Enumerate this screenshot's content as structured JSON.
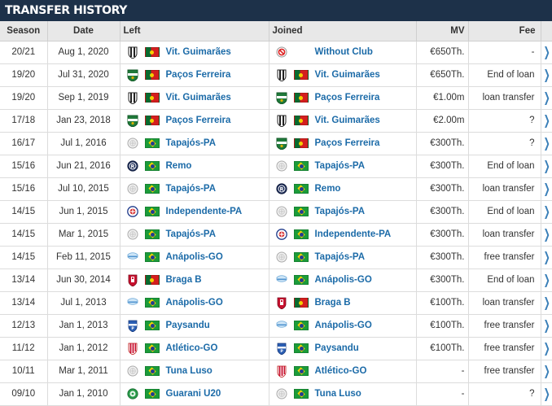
{
  "header": {
    "title": "TRANSFER HISTORY"
  },
  "columns": {
    "season": "Season",
    "date": "Date",
    "left": "Left",
    "joined": "Joined",
    "mv": "MV",
    "fee": "Fee"
  },
  "rows": [
    {
      "season": "20/21",
      "date": "Aug 1, 2020",
      "left": {
        "crest": "vitoria-guimaraes-crest-icon",
        "flag": "portugal",
        "name": "Vit. Guimarães"
      },
      "joined": {
        "crest": "without-club-icon",
        "flag": "none",
        "name": "Without Club"
      },
      "mv": "€650Th.",
      "fee": "-"
    },
    {
      "season": "19/20",
      "date": "Jul 31, 2020",
      "left": {
        "crest": "pacos-ferreira-crest-icon",
        "flag": "portugal",
        "name": "Paços Ferreira"
      },
      "joined": {
        "crest": "vitoria-guimaraes-crest-icon",
        "flag": "portugal",
        "name": "Vit. Guimarães"
      },
      "mv": "€650Th.",
      "fee": "End of loan"
    },
    {
      "season": "19/20",
      "date": "Sep 1, 2019",
      "left": {
        "crest": "vitoria-guimaraes-crest-icon",
        "flag": "portugal",
        "name": "Vit. Guimarães"
      },
      "joined": {
        "crest": "pacos-ferreira-crest-icon",
        "flag": "portugal",
        "name": "Paços Ferreira"
      },
      "mv": "€1.00m",
      "fee": "loan transfer"
    },
    {
      "season": "17/18",
      "date": "Jan 23, 2018",
      "left": {
        "crest": "pacos-ferreira-crest-icon",
        "flag": "portugal",
        "name": "Paços Ferreira"
      },
      "joined": {
        "crest": "vitoria-guimaraes-crest-icon",
        "flag": "portugal",
        "name": "Vit. Guimarães"
      },
      "mv": "€2.00m",
      "fee": "?"
    },
    {
      "season": "16/17",
      "date": "Jul 1, 2016",
      "left": {
        "crest": "tapajos-crest-icon",
        "flag": "brazil",
        "name": "Tapajós-PA"
      },
      "joined": {
        "crest": "pacos-ferreira-crest-icon",
        "flag": "portugal",
        "name": "Paços Ferreira"
      },
      "mv": "€300Th.",
      "fee": "?"
    },
    {
      "season": "15/16",
      "date": "Jun 21, 2016",
      "left": {
        "crest": "remo-crest-icon",
        "flag": "brazil",
        "name": "Remo"
      },
      "joined": {
        "crest": "tapajos-crest-icon",
        "flag": "brazil",
        "name": "Tapajós-PA"
      },
      "mv": "€300Th.",
      "fee": "End of loan"
    },
    {
      "season": "15/16",
      "date": "Jul 10, 2015",
      "left": {
        "crest": "tapajos-crest-icon",
        "flag": "brazil",
        "name": "Tapajós-PA"
      },
      "joined": {
        "crest": "remo-crest-icon",
        "flag": "brazil",
        "name": "Remo"
      },
      "mv": "€300Th.",
      "fee": "loan transfer"
    },
    {
      "season": "14/15",
      "date": "Jun 1, 2015",
      "left": {
        "crest": "independente-crest-icon",
        "flag": "brazil",
        "name": "Independente-PA"
      },
      "joined": {
        "crest": "tapajos-crest-icon",
        "flag": "brazil",
        "name": "Tapajós-PA"
      },
      "mv": "€300Th.",
      "fee": "End of loan"
    },
    {
      "season": "14/15",
      "date": "Mar 1, 2015",
      "left": {
        "crest": "tapajos-crest-icon",
        "flag": "brazil",
        "name": "Tapajós-PA"
      },
      "joined": {
        "crest": "independente-crest-icon",
        "flag": "brazil",
        "name": "Independente-PA"
      },
      "mv": "€300Th.",
      "fee": "loan transfer"
    },
    {
      "season": "14/15",
      "date": "Feb 11, 2015",
      "left": {
        "crest": "anapolis-crest-icon",
        "flag": "brazil",
        "name": "Anápolis-GO"
      },
      "joined": {
        "crest": "tapajos-crest-icon",
        "flag": "brazil",
        "name": "Tapajós-PA"
      },
      "mv": "€300Th.",
      "fee": "free transfer"
    },
    {
      "season": "13/14",
      "date": "Jun 30, 2014",
      "left": {
        "crest": "braga-crest-icon",
        "flag": "portugal",
        "name": "Braga B"
      },
      "joined": {
        "crest": "anapolis-crest-icon",
        "flag": "brazil",
        "name": "Anápolis-GO"
      },
      "mv": "€300Th.",
      "fee": "End of loan"
    },
    {
      "season": "13/14",
      "date": "Jul 1, 2013",
      "left": {
        "crest": "anapolis-crest-icon",
        "flag": "brazil",
        "name": "Anápolis-GO"
      },
      "joined": {
        "crest": "braga-crest-icon",
        "flag": "portugal",
        "name": "Braga B"
      },
      "mv": "€100Th.",
      "fee": "loan transfer"
    },
    {
      "season": "12/13",
      "date": "Jan 1, 2013",
      "left": {
        "crest": "paysandu-crest-icon",
        "flag": "brazil",
        "name": "Paysandu"
      },
      "joined": {
        "crest": "anapolis-crest-icon",
        "flag": "brazil",
        "name": "Anápolis-GO"
      },
      "mv": "€100Th.",
      "fee": "free transfer"
    },
    {
      "season": "11/12",
      "date": "Jan 1, 2012",
      "left": {
        "crest": "atletico-go-crest-icon",
        "flag": "brazil",
        "name": "Atlético-GO"
      },
      "joined": {
        "crest": "paysandu-crest-icon",
        "flag": "brazil",
        "name": "Paysandu"
      },
      "mv": "€100Th.",
      "fee": "free transfer"
    },
    {
      "season": "10/11",
      "date": "Mar 1, 2011",
      "left": {
        "crest": "tuna-luso-crest-icon",
        "flag": "brazil",
        "name": "Tuna Luso"
      },
      "joined": {
        "crest": "atletico-go-crest-icon",
        "flag": "brazil",
        "name": "Atlético-GO"
      },
      "mv": "-",
      "fee": "free transfer"
    },
    {
      "season": "09/10",
      "date": "Jan 1, 2010",
      "left": {
        "crest": "guarani-crest-icon",
        "flag": "brazil",
        "name": "Guarani U20"
      },
      "joined": {
        "crest": "tuna-luso-crest-icon",
        "flag": "brazil",
        "name": "Tuna Luso"
      },
      "mv": "-",
      "fee": "?"
    }
  ]
}
